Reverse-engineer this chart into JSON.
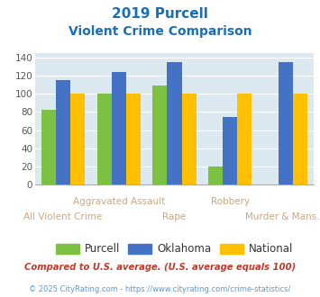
{
  "title_line1": "2019 Purcell",
  "title_line2": "Violent Crime Comparison",
  "categories": [
    "All Violent Crime",
    "Aggravated Assault",
    "Rape",
    "Robbery",
    "Murder & Mans..."
  ],
  "purcell": [
    82,
    100,
    109,
    20,
    0
  ],
  "oklahoma": [
    115,
    124,
    135,
    74,
    135
  ],
  "national": [
    100,
    100,
    100,
    100,
    100
  ],
  "purcell_color": "#7dc142",
  "oklahoma_color": "#4472c4",
  "national_color": "#ffc000",
  "bg_color": "#dce9f0",
  "ylim": [
    0,
    145
  ],
  "yticks": [
    0,
    20,
    40,
    60,
    80,
    100,
    120,
    140
  ],
  "xlabel_color": "#c8a882",
  "title_color": "#1a6eb5",
  "footnote": "Compared to U.S. average. (U.S. average equals 100)",
  "footnote2": "© 2025 CityRating.com - https://www.cityrating.com/crime-statistics/",
  "footnote_color": "#c0392b",
  "footnote2_color": "#5b9bd5",
  "legend_labels": [
    "Purcell",
    "Oklahoma",
    "National"
  ]
}
